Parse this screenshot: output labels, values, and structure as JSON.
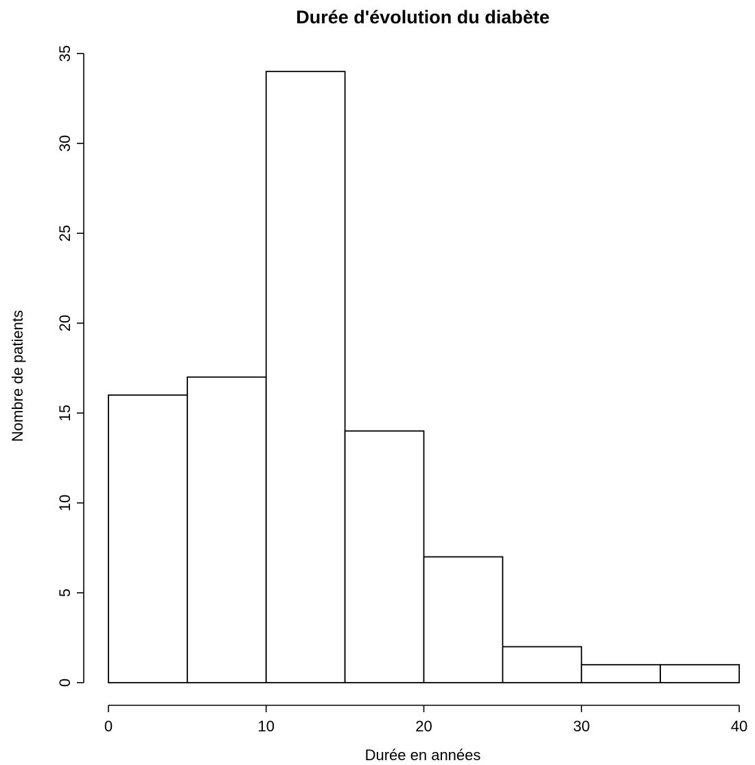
{
  "chart_data": {
    "type": "bar",
    "title": "Durée d'évolution du diabète",
    "xlabel": "Durée en années",
    "ylabel": "Nombre de patients",
    "bins": [
      {
        "start": 0,
        "end": 5,
        "count": 16
      },
      {
        "start": 5,
        "end": 10,
        "count": 17
      },
      {
        "start": 10,
        "end": 15,
        "count": 34
      },
      {
        "start": 15,
        "end": 20,
        "count": 14
      },
      {
        "start": 20,
        "end": 25,
        "count": 7
      },
      {
        "start": 25,
        "end": 30,
        "count": 2
      },
      {
        "start": 30,
        "end": 35,
        "count": 1
      },
      {
        "start": 35,
        "end": 40,
        "count": 1
      }
    ],
    "xlim": [
      0,
      40
    ],
    "ylim": [
      0,
      35
    ],
    "xticks": [
      "0",
      "10",
      "20",
      "30",
      "40"
    ],
    "yticks": [
      "0",
      "5",
      "10",
      "15",
      "20",
      "25",
      "30",
      "35"
    ],
    "grid": false,
    "bar_fill": "#ffffff",
    "bar_stroke": "#000000"
  }
}
